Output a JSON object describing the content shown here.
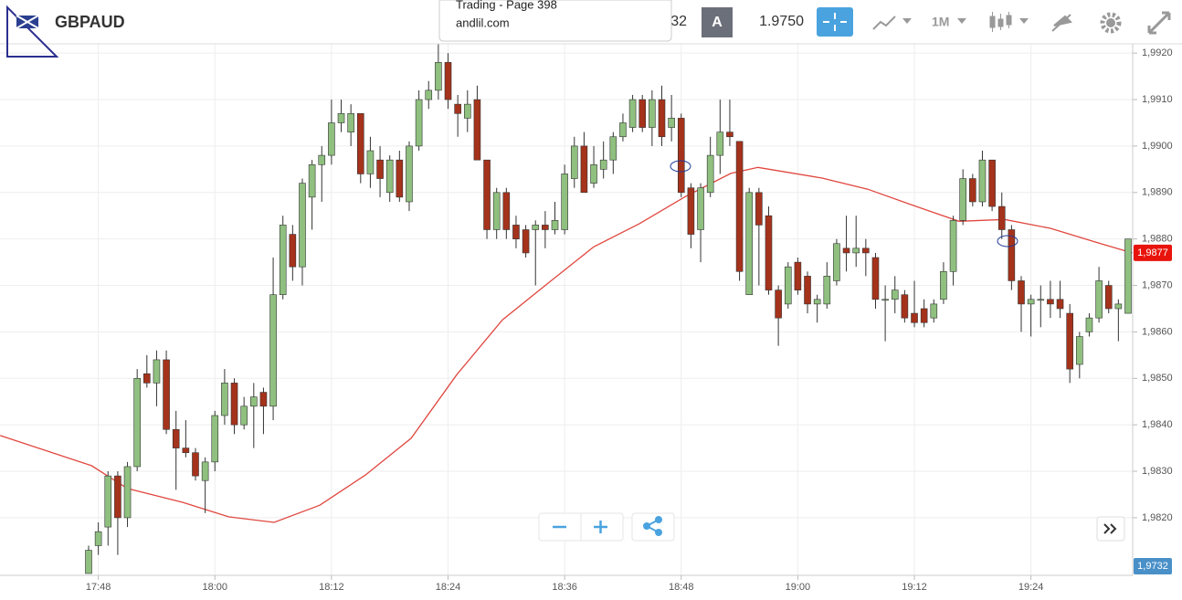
{
  "header": {
    "symbol": "GBPAUD",
    "bid_partial": "32",
    "ask_label": "A",
    "ask": "1.9750",
    "timeframe": "1M"
  },
  "popup": {
    "title": "Trading - Page 398",
    "url": "andlil.com"
  },
  "chart_data": {
    "type": "candlestick",
    "categories": [
      null,
      "17:48",
      null,
      null,
      null,
      null,
      null,
      null,
      null,
      null,
      null,
      null,
      null,
      "18:00",
      null,
      null,
      null,
      null,
      null,
      null,
      null,
      null,
      null,
      null,
      null,
      "18:12",
      null,
      null,
      null,
      null,
      null,
      null,
      null,
      null,
      null,
      null,
      null,
      "18:24",
      null,
      null,
      null,
      null,
      null,
      null,
      null,
      null,
      null,
      null,
      null,
      "18:36",
      null,
      null,
      null,
      null,
      null,
      null,
      null,
      null,
      null,
      null,
      null,
      "18:48",
      null,
      null,
      null,
      null,
      null,
      null,
      null,
      null,
      null,
      null,
      null,
      "19:00",
      null,
      null,
      null,
      null,
      null,
      null,
      null,
      null,
      null,
      null,
      null,
      "19:12",
      null,
      null,
      null,
      null,
      null,
      null,
      null,
      null,
      null,
      null,
      null,
      "19:24",
      null,
      null,
      null,
      null,
      null,
      null,
      null,
      null,
      null,
      null
    ],
    "open": [
      1.9808,
      1.9814,
      1.9818,
      1.9829,
      1.982,
      1.9831,
      1.9851,
      1.9849,
      1.9854,
      1.9839,
      1.9835,
      1.9834,
      1.9828,
      1.9832,
      1.9842,
      1.9849,
      1.984,
      1.9844,
      1.9847,
      1.9844,
      1.9868,
      1.9881,
      1.9874,
      1.9889,
      1.9896,
      1.9898,
      1.9905,
      1.9903,
      1.9907,
      1.9894,
      1.9897,
      1.989,
      1.9897,
      1.9888,
      1.99,
      1.991,
      1.9912,
      1.9918,
      1.9909,
      1.9906,
      1.991,
      1.9897,
      1.9882,
      1.989,
      1.9883,
      1.9882,
      1.9882,
      1.9883,
      1.9882,
      1.9882,
      1.9893,
      1.99,
      1.9892,
      1.9895,
      1.9897,
      1.9902,
      1.9904,
      1.991,
      1.9904,
      1.991,
      1.9904,
      1.9906,
      1.9891,
      1.9882,
      1.989,
      1.9898,
      1.9903,
      1.9901,
      1.9868,
      1.989,
      1.9885,
      1.9869,
      1.9866,
      1.9875,
      1.9872,
      1.9866,
      1.9866,
      1.9871,
      1.9878,
      1.9877,
      1.9878,
      1.9876,
      1.9867,
      1.9867,
      1.9868,
      1.9864,
      1.9865,
      1.9863,
      1.9867,
      1.9873,
      1.9884,
      1.9893,
      1.9888,
      1.9897,
      1.9887,
      1.9882,
      1.9871,
      1.9866,
      1.9867,
      1.9867,
      1.9867,
      1.9864,
      1.9853,
      1.986,
      1.9863,
      1.987,
      1.9865,
      1.9864
    ],
    "high": [
      1.9814,
      1.9819,
      1.983,
      1.983,
      1.9832,
      1.9852,
      1.9855,
      1.9856,
      1.9856,
      1.9843,
      1.9841,
      1.9835,
      1.9833,
      1.9843,
      1.9852,
      1.985,
      1.9846,
      1.9849,
      1.9848,
      1.9876,
      1.9885,
      1.9883,
      1.9893,
      1.9897,
      1.99,
      1.991,
      1.991,
      1.9909,
      1.9907,
      1.9902,
      1.99,
      1.9898,
      1.9899,
      1.9901,
      1.9912,
      1.9914,
      1.9922,
      1.992,
      1.9911,
      1.9912,
      1.9913,
      1.9897,
      1.9891,
      1.9891,
      1.9885,
      1.9883,
      1.9884,
      1.9886,
      1.9888,
      1.9896,
      1.9902,
      1.9903,
      1.99,
      1.9901,
      1.9903,
      1.9907,
      1.9911,
      1.9911,
      1.9912,
      1.9913,
      1.9911,
      1.9907,
      1.9892,
      1.9892,
      1.9902,
      1.991,
      1.991,
      1.9901,
      1.9891,
      1.9891,
      1.9887,
      1.987,
      1.9875,
      1.9876,
      1.9873,
      1.9868,
      1.9875,
      1.988,
      1.9885,
      1.9885,
      1.988,
      1.9877,
      1.987,
      1.9872,
      1.9869,
      1.9871,
      1.9867,
      1.9867,
      1.9875,
      1.9885,
      1.9895,
      1.9894,
      1.9899,
      1.9897,
      1.989,
      1.9883,
      1.9872,
      1.9868,
      1.987,
      1.9871,
      1.9871,
      1.9866,
      1.986,
      1.9864,
      1.9874,
      1.9871,
      1.9867,
      1.988
    ],
    "low": [
      1.9808,
      1.9812,
      1.9814,
      1.9812,
      1.9818,
      1.983,
      1.9848,
      1.9844,
      1.9838,
      1.9826,
      1.9833,
      1.9828,
      1.9821,
      1.983,
      1.984,
      1.9838,
      1.9839,
      1.9835,
      1.9838,
      1.9841,
      1.9867,
      1.9871,
      1.987,
      1.9882,
      1.9888,
      1.9896,
      1.9903,
      1.99,
      1.9892,
      1.9891,
      1.9889,
      1.9888,
      1.9888,
      1.9886,
      1.9899,
      1.9908,
      1.991,
      1.9908,
      1.9902,
      1.9903,
      1.9897,
      1.988,
      1.988,
      1.988,
      1.9878,
      1.9876,
      1.987,
      1.9878,
      1.9881,
      1.9881,
      1.9891,
      1.989,
      1.9891,
      1.9893,
      1.9894,
      1.9901,
      1.9903,
      1.9903,
      1.99,
      1.99,
      1.9901,
      1.9889,
      1.9878,
      1.9875,
      1.9889,
      1.9894,
      1.99,
      1.9871,
      1.9868,
      1.987,
      1.9868,
      1.9857,
      1.9865,
      1.9868,
      1.9864,
      1.9862,
      1.9865,
      1.987,
      1.9873,
      1.9874,
      1.9872,
      1.9865,
      1.9858,
      1.9864,
      1.9862,
      1.9861,
      1.9861,
      1.9862,
      1.9866,
      1.987,
      1.9883,
      1.9887,
      1.9887,
      1.9886,
      1.988,
      1.9869,
      1.986,
      1.9859,
      1.9861,
      1.9863,
      1.9863,
      1.9849,
      1.985,
      1.9859,
      1.9862,
      1.9864,
      1.9858,
      1.9864
    ],
    "close": [
      1.9813,
      1.9817,
      1.9829,
      1.982,
      1.9831,
      1.985,
      1.9849,
      1.9854,
      1.9839,
      1.9835,
      1.9834,
      1.9829,
      1.9832,
      1.9842,
      1.9849,
      1.984,
      1.9844,
      1.9846,
      1.9844,
      1.9868,
      1.9883,
      1.9874,
      1.9892,
      1.9896,
      1.9898,
      1.9905,
      1.9907,
      1.9907,
      1.9894,
      1.9899,
      1.9893,
      1.9897,
      1.9889,
      1.99,
      1.991,
      1.9912,
      1.9918,
      1.991,
      1.9907,
      1.9909,
      1.9897,
      1.9882,
      1.989,
      1.9882,
      1.988,
      1.9877,
      1.9883,
      1.9882,
      1.9884,
      1.9894,
      1.99,
      1.989,
      1.9896,
      1.9897,
      1.9902,
      1.9905,
      1.991,
      1.9904,
      1.991,
      1.9902,
      1.9906,
      1.989,
      1.9881,
      1.9891,
      1.9898,
      1.9903,
      1.9902,
      1.9873,
      1.989,
      1.9883,
      1.9869,
      1.9863,
      1.9874,
      1.9869,
      1.9866,
      1.9867,
      1.9872,
      1.9879,
      1.9877,
      1.9878,
      1.9877,
      1.9867,
      1.9867,
      1.9869,
      1.9863,
      1.9862,
      1.9862,
      1.9866,
      1.9873,
      1.9884,
      1.9893,
      1.9888,
      1.9897,
      1.9887,
      1.9882,
      1.9871,
      1.9866,
      1.9867,
      1.9867,
      1.9866,
      1.9865,
      1.9852,
      1.9859,
      1.9863,
      1.9871,
      1.9865,
      1.9866,
      1.988
    ],
    "up_color": "#8fc07f",
    "down_color": "#a5321b",
    "moving_average": {
      "color": "#e0473f",
      "x": [
        -9.1,
        0.3,
        4.0,
        9.7,
        14.4,
        19.1,
        23.8,
        28.5,
        33.2,
        37.9,
        42.6,
        47.3,
        52.0,
        56.7,
        61.4,
        66.1,
        68.9,
        75.5,
        80.2,
        84.9,
        89.6,
        94.3,
        99.0,
        103.7,
        107.4
      ],
      "values": [
        1.98377,
        1.98312,
        1.98263,
        1.98233,
        1.98202,
        1.9819,
        1.98227,
        1.98292,
        1.98371,
        1.98508,
        1.98626,
        1.98705,
        1.98783,
        1.98833,
        1.98891,
        1.98941,
        1.98954,
        1.98931,
        1.98907,
        1.98872,
        1.98838,
        1.98842,
        1.98823,
        1.98793,
        1.9877
      ]
    },
    "xlim": [
      -9.1,
      107.4
    ],
    "ylim": [
      1.98076,
      1.9922
    ],
    "yticks": [
      {
        "value": 1.982,
        "label": "1,9820"
      },
      {
        "value": 1.983,
        "label": "1,9830"
      },
      {
        "value": 1.984,
        "label": "1,9840"
      },
      {
        "value": 1.985,
        "label": "1,9850"
      },
      {
        "value": 1.986,
        "label": "1,9860"
      },
      {
        "value": 1.987,
        "label": "1,9870"
      },
      {
        "value": 1.988,
        "label": "1,9880"
      },
      {
        "value": 1.989,
        "label": "1,9890"
      },
      {
        "value": 1.99,
        "label": "1,9900"
      },
      {
        "value": 1.991,
        "label": "1,9910"
      },
      {
        "value": 1.992,
        "label": "1,9920"
      }
    ],
    "grid": true,
    "last_price": {
      "value": 1.9877,
      "label": "1,9877",
      "color": "#e8140c"
    },
    "price_tag": "1,9732"
  }
}
